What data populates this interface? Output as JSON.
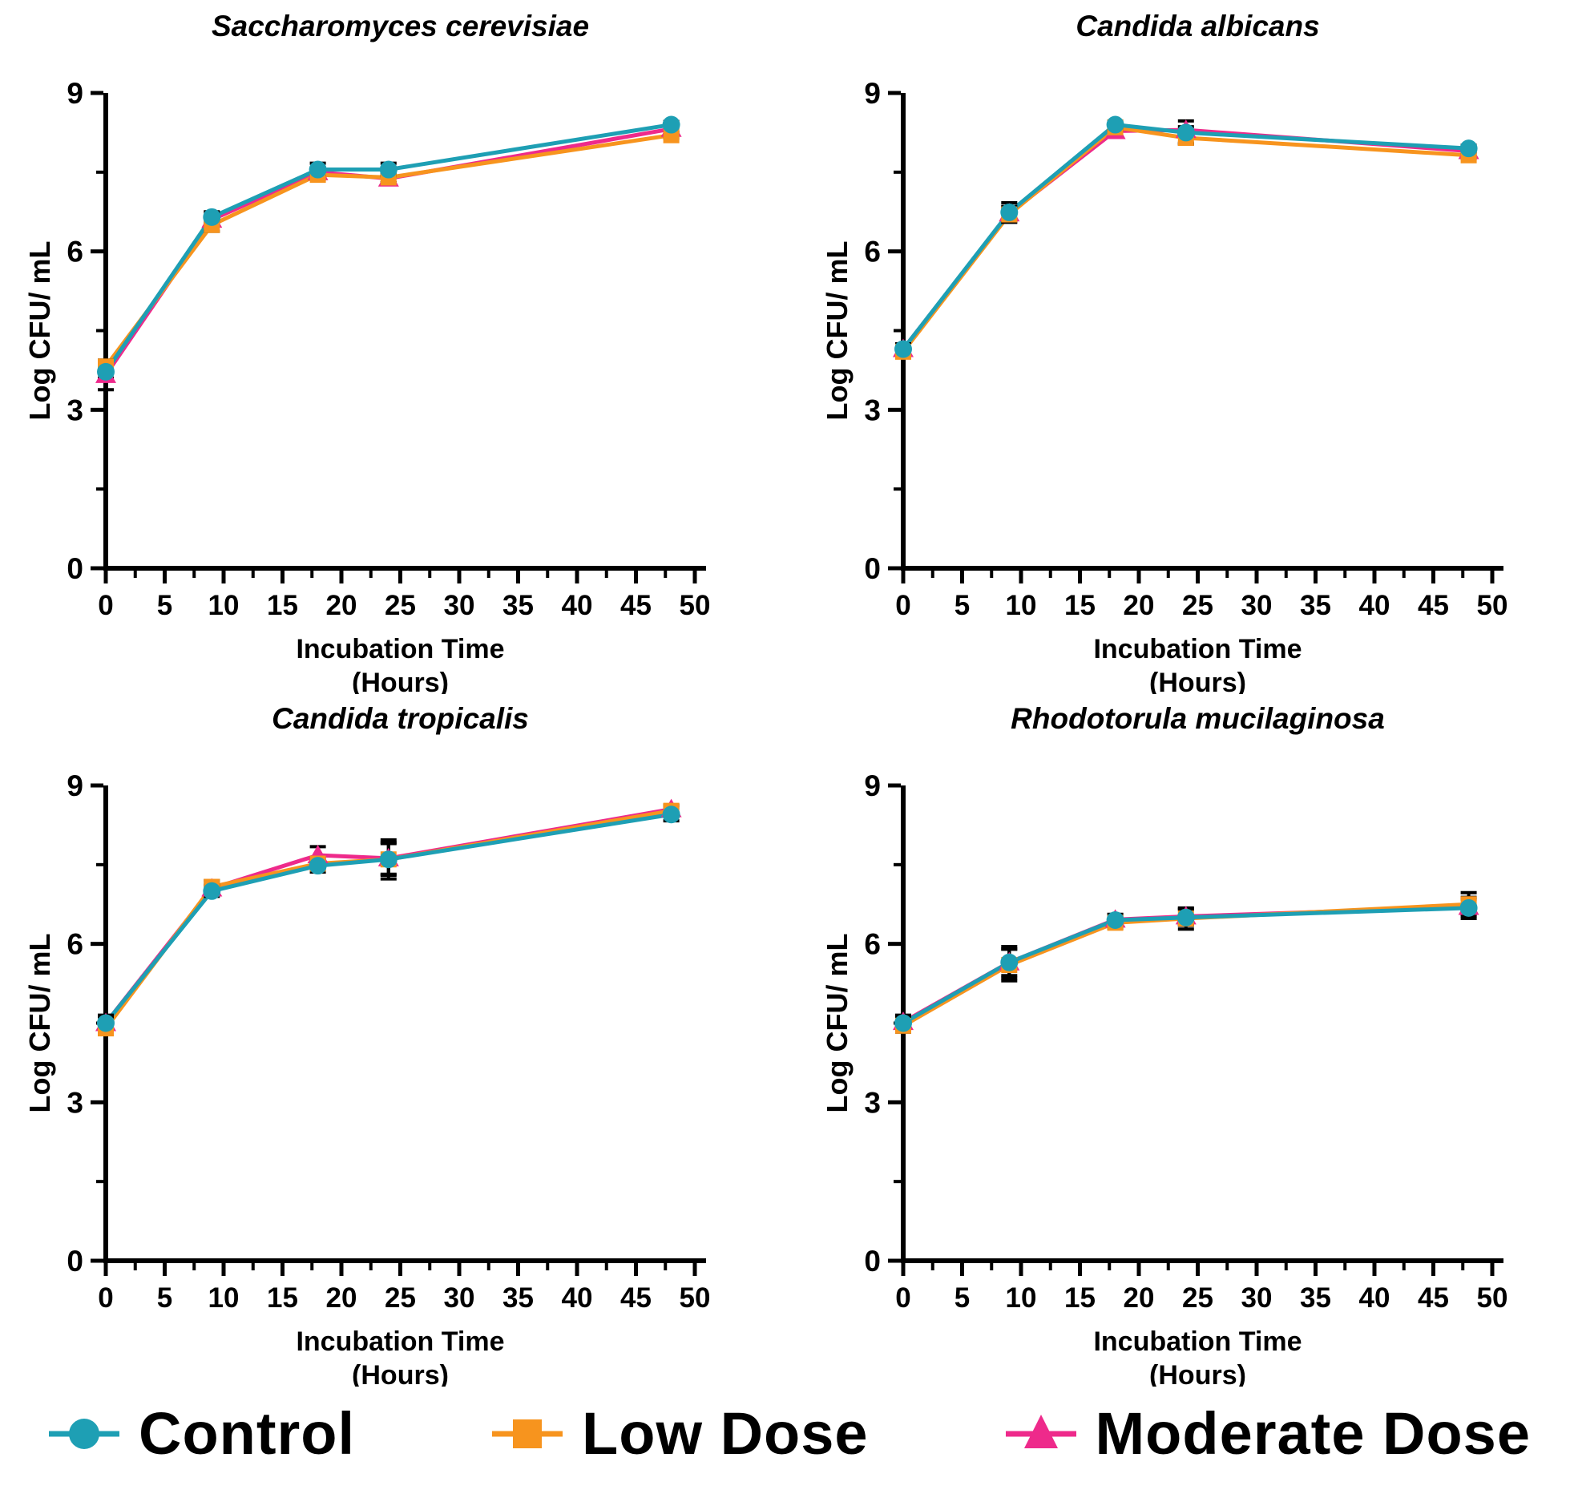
{
  "page": {
    "background": "#ffffff"
  },
  "colors": {
    "control": "#1E9FB4",
    "low_dose": "#F7941E",
    "moderate_dose": "#EE2A8B",
    "axis": "#000000"
  },
  "legend": {
    "items": [
      {
        "label": "Control",
        "marker": "circle-icon",
        "color": "#1E9FB4"
      },
      {
        "label": "Low Dose",
        "marker": "square-icon",
        "color": "#F7941E"
      },
      {
        "label": "Moderate Dose",
        "marker": "triangle-icon",
        "color": "#EE2A8B"
      }
    ]
  },
  "chart_data": [
    {
      "type": "line",
      "title": "Saccharomyces cerevisiae",
      "xlabel": "Incubation Time",
      "xlabel2": "(Hours)",
      "ylabel": "Log CFU/ mL",
      "x": [
        0,
        9,
        18,
        24,
        48
      ],
      "xlim": [
        0,
        50
      ],
      "ylim": [
        0,
        9
      ],
      "xticks": [
        0,
        5,
        10,
        15,
        20,
        25,
        30,
        35,
        40,
        45,
        50
      ],
      "yticks": [
        0,
        3,
        6,
        9
      ],
      "grid": false,
      "series": [
        {
          "name": "Control",
          "color": "#1E9FB4",
          "marker": "circle",
          "values": [
            3.72,
            6.65,
            7.55,
            7.55,
            8.4
          ],
          "errors": [
            0.12,
            0.1,
            0.12,
            0.12,
            0.06
          ]
        },
        {
          "name": "Low Dose",
          "color": "#F7941E",
          "marker": "square",
          "values": [
            3.82,
            6.5,
            7.45,
            7.4,
            8.2
          ],
          "errors": [
            0.12,
            0.12,
            0.08,
            0.1,
            0.06
          ]
        },
        {
          "name": "Moderate Dose",
          "color": "#EE2A8B",
          "marker": "triangle",
          "values": [
            3.66,
            6.6,
            7.5,
            7.38,
            8.32
          ],
          "errors": [
            0.28,
            0.08,
            0.08,
            0.08,
            0.06
          ]
        }
      ]
    },
    {
      "type": "line",
      "title": "Candida albicans",
      "xlabel": "Incubation Time",
      "xlabel2": "(Hours)",
      "ylabel": "Log CFU/ mL",
      "x": [
        0,
        9,
        18,
        24,
        48
      ],
      "xlim": [
        0,
        50
      ],
      "ylim": [
        0,
        9
      ],
      "xticks": [
        0,
        5,
        10,
        15,
        20,
        25,
        30,
        35,
        40,
        45,
        50
      ],
      "yticks": [
        0,
        3,
        6,
        9
      ],
      "grid": false,
      "series": [
        {
          "name": "Control",
          "color": "#1E9FB4",
          "marker": "circle",
          "values": [
            4.15,
            6.74,
            8.4,
            8.25,
            7.95
          ],
          "errors": [
            0.1,
            0.18,
            0.06,
            0.22,
            0.06
          ]
        },
        {
          "name": "Low Dose",
          "color": "#F7941E",
          "marker": "square",
          "values": [
            4.1,
            6.7,
            8.35,
            8.15,
            7.82
          ],
          "errors": [
            0.1,
            0.15,
            0.06,
            0.1,
            0.06
          ]
        },
        {
          "name": "Moderate Dose",
          "color": "#EE2A8B",
          "marker": "triangle",
          "values": [
            4.15,
            6.72,
            8.28,
            8.3,
            7.9
          ],
          "errors": [
            0.1,
            0.12,
            0.1,
            0.06,
            0.06
          ]
        }
      ]
    },
    {
      "type": "line",
      "title": "Candida tropicalis",
      "xlabel": "Incubation Time",
      "xlabel2": "(Hours)",
      "ylabel": "Log CFU/ mL",
      "x": [
        0,
        9,
        18,
        24,
        48
      ],
      "xlim": [
        0,
        50
      ],
      "ylim": [
        0,
        9
      ],
      "xticks": [
        0,
        5,
        10,
        15,
        20,
        25,
        30,
        35,
        40,
        45,
        50
      ],
      "yticks": [
        0,
        3,
        6,
        9
      ],
      "grid": false,
      "series": [
        {
          "name": "Control",
          "color": "#1E9FB4",
          "marker": "circle",
          "values": [
            4.5,
            7.0,
            7.48,
            7.6,
            8.45
          ],
          "errors": [
            0.15,
            0.1,
            0.12,
            0.37,
            0.12
          ]
        },
        {
          "name": "Low Dose",
          "color": "#F7941E",
          "marker": "square",
          "values": [
            4.4,
            7.08,
            7.52,
            7.6,
            8.52
          ],
          "errors": [
            0.12,
            0.12,
            0.1,
            0.3,
            0.1
          ]
        },
        {
          "name": "Moderate Dose",
          "color": "#EE2A8B",
          "marker": "triangle",
          "values": [
            4.5,
            7.05,
            7.68,
            7.62,
            8.55
          ],
          "errors": [
            0.12,
            0.08,
            0.16,
            0.3,
            0.08
          ]
        }
      ]
    },
    {
      "type": "line",
      "title": "Rhodotorula mucilaginosa",
      "xlabel": "Incubation Time",
      "xlabel2": "(Hours)",
      "ylabel": "Log CFU/ mL",
      "x": [
        0,
        9,
        18,
        24,
        48
      ],
      "xlim": [
        0,
        50
      ],
      "ylim": [
        0,
        9
      ],
      "xticks": [
        0,
        5,
        10,
        15,
        20,
        25,
        30,
        35,
        40,
        45,
        50
      ],
      "yticks": [
        0,
        3,
        6,
        9
      ],
      "grid": false,
      "series": [
        {
          "name": "Control",
          "color": "#1E9FB4",
          "marker": "circle",
          "values": [
            4.5,
            5.65,
            6.45,
            6.5,
            6.68
          ],
          "errors": [
            0.15,
            0.3,
            0.1,
            0.15,
            0.2
          ]
        },
        {
          "name": "Low Dose",
          "color": "#F7941E",
          "marker": "square",
          "values": [
            4.45,
            5.6,
            6.4,
            6.48,
            6.75
          ],
          "errors": [
            0.12,
            0.3,
            0.1,
            0.2,
            0.22
          ]
        },
        {
          "name": "Moderate Dose",
          "color": "#EE2A8B",
          "marker": "triangle",
          "values": [
            4.52,
            5.65,
            6.46,
            6.52,
            6.7
          ],
          "errors": [
            0.1,
            0.25,
            0.1,
            0.15,
            0.15
          ]
        }
      ]
    }
  ]
}
